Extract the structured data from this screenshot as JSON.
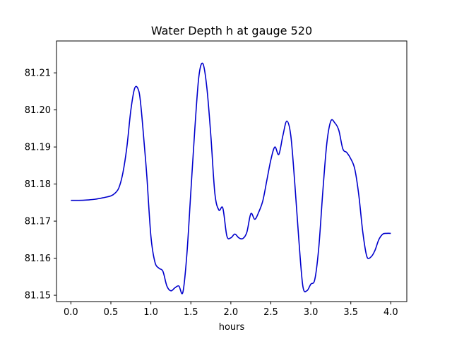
{
  "chart_data": {
    "type": "line",
    "title": "Water Depth h at gauge 520",
    "xlabel": "hours",
    "ylabel": "",
    "xlim": [
      -0.18,
      4.2
    ],
    "ylim": [
      81.1483,
      81.2186
    ],
    "xticks": [
      0.0,
      0.5,
      1.0,
      1.5,
      2.0,
      2.5,
      3.0,
      3.5,
      4.0
    ],
    "xtick_labels": [
      "0.0",
      "0.5",
      "1.0",
      "1.5",
      "2.0",
      "2.5",
      "3.0",
      "3.5",
      "4.0"
    ],
    "yticks": [
      81.15,
      81.16,
      81.17,
      81.18,
      81.19,
      81.2,
      81.21
    ],
    "ytick_labels": [
      "81.15",
      "81.16",
      "81.17",
      "81.18",
      "81.19",
      "81.20",
      "81.21"
    ],
    "grid": false,
    "line_color": "#0000cc",
    "series": [
      {
        "x": [
          0.0,
          0.1,
          0.2,
          0.3,
          0.4,
          0.5,
          0.55,
          0.6,
          0.65,
          0.7,
          0.75,
          0.8,
          0.85,
          0.88,
          0.92,
          0.95,
          1.0,
          1.05,
          1.1,
          1.15,
          1.2,
          1.25,
          1.3,
          1.35,
          1.4,
          1.45,
          1.5,
          1.55,
          1.6,
          1.65,
          1.7,
          1.75,
          1.8,
          1.85,
          1.9,
          1.95,
          2.0,
          2.05,
          2.1,
          2.15,
          2.2,
          2.25,
          2.3,
          2.35,
          2.4,
          2.45,
          2.5,
          2.55,
          2.6,
          2.65,
          2.7,
          2.75,
          2.8,
          2.85,
          2.9,
          2.95,
          3.0,
          3.05,
          3.1,
          3.15,
          3.2,
          3.25,
          3.3,
          3.35,
          3.4,
          3.45,
          3.5,
          3.55,
          3.6,
          3.65,
          3.7,
          3.75,
          3.8,
          3.85,
          3.9,
          3.95,
          4.0
        ],
        "y": [
          81.1756,
          81.1756,
          81.1757,
          81.1759,
          81.1763,
          81.1768,
          81.1775,
          81.179,
          81.183,
          81.19,
          81.2,
          81.206,
          81.205,
          81.2,
          81.19,
          81.182,
          81.166,
          81.159,
          81.1573,
          81.1565,
          81.1525,
          81.1512,
          81.152,
          81.1525,
          81.1508,
          81.161,
          81.178,
          81.195,
          81.209,
          81.2125,
          81.206,
          81.193,
          81.1775,
          81.173,
          81.1735,
          81.166,
          81.1655,
          81.1665,
          81.1655,
          81.1653,
          81.167,
          81.172,
          81.1705,
          81.1725,
          81.1755,
          81.181,
          81.1865,
          81.19,
          81.188,
          81.193,
          81.197,
          81.193,
          81.18,
          81.165,
          81.1525,
          81.1512,
          81.153,
          81.1543,
          81.163,
          81.178,
          81.191,
          81.197,
          81.1965,
          81.1945,
          81.1895,
          81.1885,
          81.1868,
          81.184,
          81.177,
          81.167,
          81.1605,
          81.1603,
          81.162,
          81.165,
          81.1665,
          81.1667,
          81.1667
        ]
      }
    ]
  }
}
